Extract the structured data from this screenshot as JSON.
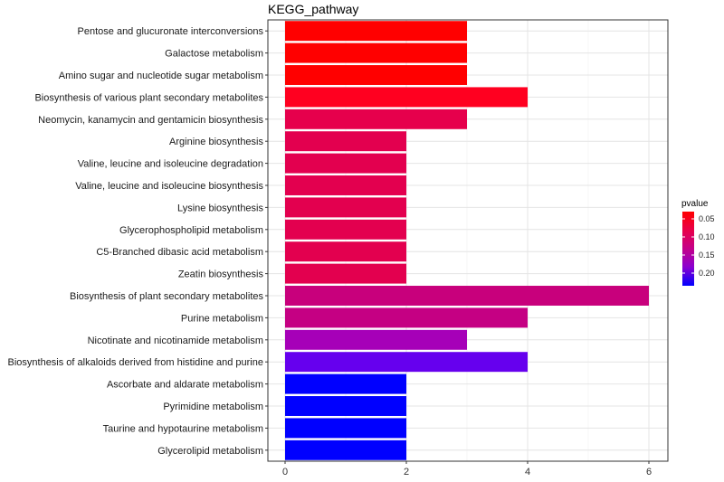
{
  "chart_data": {
    "type": "bar",
    "orientation": "horizontal",
    "title": "KEGG_pathway",
    "xlabel": "",
    "ylabel": "",
    "xlim": [
      0,
      6.2
    ],
    "x_ticks": [
      0,
      2,
      4,
      6
    ],
    "grid": true,
    "categories": [
      "Pentose and glucuronate interconversions",
      "Galactose metabolism",
      "Amino sugar and nucleotide sugar metabolism",
      "Biosynthesis of various plant secondary metabolites",
      "Neomycin, kanamycin and gentamicin biosynthesis",
      "Arginine biosynthesis",
      "Valine, leucine and isoleucine degradation",
      "Valine, leucine and isoleucine biosynthesis",
      "Lysine biosynthesis",
      "Glycerophospholipid metabolism",
      "C5-Branched dibasic acid metabolism",
      "Zeatin biosynthesis",
      "Biosynthesis of plant secondary metabolites",
      "Purine metabolism",
      "Nicotinate and nicotinamide metabolism",
      "Biosynthesis of alkaloids derived from histidine and purine",
      "Ascorbate and aldarate metabolism",
      "Pyrimidine metabolism",
      "Taurine and hypotaurine metabolism",
      "Glycerolipid metabolism"
    ],
    "values": [
      3,
      3,
      3,
      4,
      3,
      2,
      2,
      2,
      2,
      2,
      2,
      2,
      6,
      4,
      3,
      4,
      2,
      2,
      2,
      2
    ],
    "pvalues": [
      0.03,
      0.03,
      0.03,
      0.032,
      0.07,
      0.075,
      0.075,
      0.075,
      0.075,
      0.075,
      0.075,
      0.075,
      0.115,
      0.12,
      0.15,
      0.19,
      0.235,
      0.235,
      0.235,
      0.235
    ],
    "bar_colors": [
      "#ff0000",
      "#ff0000",
      "#ff0000",
      "#ff0020",
      "#e6004c",
      "#e3004f",
      "#e3004f",
      "#e3004f",
      "#e3004f",
      "#e3004f",
      "#e3004f",
      "#e3004f",
      "#c8007c",
      "#c50083",
      "#a600b8",
      "#6600ee",
      "#0000ff",
      "#0000ff",
      "#0000ff",
      "#0000ff"
    ],
    "legend": {
      "title": "pvalue",
      "placement": "right",
      "ticks": [
        0.05,
        0.1,
        0.15,
        0.2
      ],
      "tick_labels": [
        "0.05",
        "0.10",
        "0.15",
        "0.20"
      ],
      "range": [
        0.03,
        0.235
      ],
      "color_low": "#ff0000",
      "color_high": "#0000ff"
    }
  }
}
